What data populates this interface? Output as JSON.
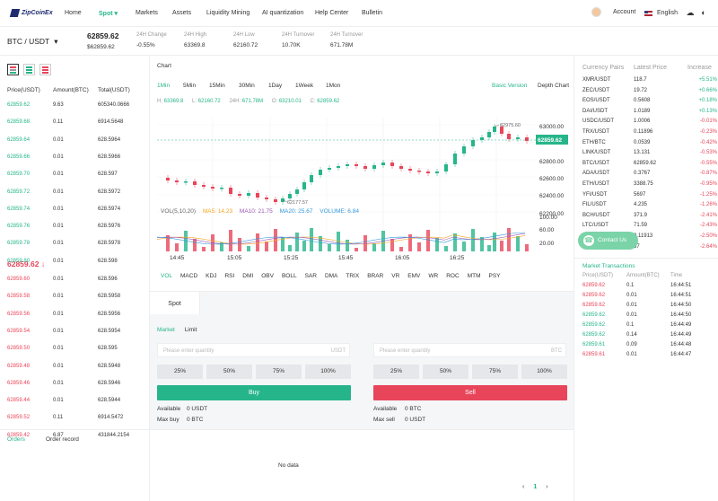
{
  "brand": {
    "name": "ZipCoinEx"
  },
  "nav": {
    "items": [
      "Home",
      "Spot",
      "Markets",
      "Assets",
      "Liquidity Mining",
      "AI quantization",
      "Help Center",
      "Bulletin"
    ],
    "active_index": 1,
    "account": "Account",
    "language": "English",
    "icons": [
      "download-cloud-icon",
      "theme-icon"
    ]
  },
  "ticker": {
    "pair": "BTC / USDT",
    "last_price": "62859.62",
    "last_usd": "$62859.62",
    "stats": [
      {
        "label": "24H Change",
        "value": "-0.55%",
        "color": "#e8455a"
      },
      {
        "label": "24H High",
        "value": "63369.8",
        "color": "#333333"
      },
      {
        "label": "24H Low",
        "value": "62160.72",
        "color": "#333333"
      },
      {
        "label": "24H Turnover",
        "value": "10.70K",
        "color": "#333333"
      },
      {
        "label": "24H Turnover",
        "value": "671.78M",
        "color": "#333333"
      }
    ]
  },
  "orderbook": {
    "headers": {
      "price": "Price(USDT)",
      "amount": "Amount(BTC)",
      "total": "Total(USDT)"
    },
    "asks": [
      {
        "price": "62859.62",
        "amount": "9.63",
        "total": "605340.0666"
      },
      {
        "price": "62859.68",
        "amount": "0.11",
        "total": "6914.5648"
      },
      {
        "price": "62859.64",
        "amount": "0.01",
        "total": "628.5964"
      },
      {
        "price": "62859.66",
        "amount": "0.01",
        "total": "628.5966"
      },
      {
        "price": "62859.70",
        "amount": "0.01",
        "total": "628.597"
      },
      {
        "price": "62859.72",
        "amount": "0.01",
        "total": "628.5972"
      },
      {
        "price": "62859.74",
        "amount": "0.01",
        "total": "628.5974"
      },
      {
        "price": "62859.76",
        "amount": "0.01",
        "total": "628.5976"
      },
      {
        "price": "62859.78",
        "amount": "0.01",
        "total": "628.5978"
      },
      {
        "price": "62859.80",
        "amount": "0.01",
        "total": "628.598"
      }
    ],
    "mid_price": "62859.62",
    "mid_arrow": "↓",
    "bids": [
      {
        "price": "62859.60",
        "amount": "0.01",
        "total": "628.596"
      },
      {
        "price": "62859.58",
        "amount": "0.01",
        "total": "628.5958"
      },
      {
        "price": "62859.56",
        "amount": "0.01",
        "total": "628.5956"
      },
      {
        "price": "62859.54",
        "amount": "0.01",
        "total": "628.5954"
      },
      {
        "price": "62859.50",
        "amount": "0.01",
        "total": "628.595"
      },
      {
        "price": "62859.48",
        "amount": "0.01",
        "total": "628.5948"
      },
      {
        "price": "62859.46",
        "amount": "0.01",
        "total": "628.5946"
      },
      {
        "price": "62859.44",
        "amount": "0.01",
        "total": "628.5944"
      },
      {
        "price": "62859.52",
        "amount": "0.11",
        "total": "6914.5472"
      },
      {
        "price": "62859.42",
        "amount": "6.87",
        "total": "431844.2154"
      }
    ]
  },
  "chart": {
    "title": "Chart",
    "intervals": [
      "1Min",
      "5Min",
      "15Min",
      "30Min",
      "1Day",
      "1Week",
      "1Mon"
    ],
    "active_interval": 0,
    "basic_version": "Basic Version",
    "depth_chart": "Depth Chart",
    "ohlc": [
      {
        "k": "H:",
        "v": "63369.8"
      },
      {
        "k": "L:",
        "v": "62160.72"
      },
      {
        "k": "24H:",
        "v": "671.78M"
      },
      {
        "k": "O:",
        "v": "63210.01"
      },
      {
        "k": "C:",
        "v": "62859.62"
      }
    ],
    "price_labels": [
      "63000.00",
      "62800.00",
      "62600.00",
      "62400.00",
      "62200.00"
    ],
    "current_price_tag": "62859.62",
    "high_marker": "62975.60",
    "low_marker": "62177.57",
    "vol_legend": {
      "vol": "VOL(5,10,20)",
      "ma5": "MA5: 14.23",
      "ma10": "MA10: 21.75",
      "ma20": "MA20: 25.67",
      "volume": "VOLUME: 6.84"
    },
    "vol_labels": [
      "100.00",
      "60.00",
      "20.00"
    ],
    "time_labels": [
      "14:45",
      "15:05",
      "15:25",
      "15:45",
      "16:05",
      "16:25"
    ],
    "indicators": [
      "VOL",
      "MACD",
      "KDJ",
      "RSI",
      "DMI",
      "OBV",
      "BOLL",
      "SAR",
      "DMA",
      "TRIX",
      "BRAR",
      "VR",
      "EMV",
      "WR",
      "ROC",
      "MTM",
      "PSY"
    ],
    "colors": {
      "up": "#26b58a",
      "down": "#e8455a",
      "ma5": "#f5a623",
      "ma10": "#9b59b6",
      "ma20": "#3498db"
    }
  },
  "trade": {
    "tab": "Spot",
    "modes": [
      "Market",
      "Limit"
    ],
    "placeholder": "Please enter quantity",
    "buy_unit": "USDT",
    "sell_unit": "BTC",
    "percents": [
      "25%",
      "50%",
      "75%",
      "100%"
    ],
    "buy_label": "Buy",
    "sell_label": "Sell",
    "buy_available": "Available",
    "buy_available_val": "0 USDT",
    "buy_max": "Max buy",
    "buy_max_val": "0 BTC",
    "sell_available": "Available",
    "sell_available_val": "0 BTC",
    "sell_max": "Max sell",
    "sell_max_val": "0 USDT"
  },
  "orders": {
    "tabs": [
      "Orders",
      "Order record"
    ],
    "empty": "No data",
    "page": "1",
    "prev": "‹",
    "next": "›"
  },
  "markets": {
    "headers": [
      "Currency Pairs",
      "Latest Price",
      "Increase"
    ],
    "rows": [
      {
        "pair": "XMR/USDT",
        "price": "118.7",
        "change": "+5.51%",
        "up": true
      },
      {
        "pair": "ZEC/USDT",
        "price": "19.72",
        "change": "+0.66%",
        "up": true
      },
      {
        "pair": "EOS/USDT",
        "price": "0.5608",
        "change": "+0.18%",
        "up": true
      },
      {
        "pair": "DAI/USDT",
        "price": "1.0189",
        "change": "+0.13%",
        "up": true
      },
      {
        "pair": "USDC/USDT",
        "price": "1.0006",
        "change": "-0.01%",
        "up": false
      },
      {
        "pair": "TRX/USDT",
        "price": "0.11896",
        "change": "-0.23%",
        "up": false
      },
      {
        "pair": "ETH/BTC",
        "price": "0.0539",
        "change": "-0.42%",
        "up": false
      },
      {
        "pair": "LINK/USDT",
        "price": "13.131",
        "change": "-0.53%",
        "up": false
      },
      {
        "pair": "BTC/USDT",
        "price": "62859.62",
        "change": "-0.55%",
        "up": false
      },
      {
        "pair": "ADA/USDT",
        "price": "0.3767",
        "change": "-0.87%",
        "up": false
      },
      {
        "pair": "ETH/USDT",
        "price": "3388.75",
        "change": "-0.95%",
        "up": false
      },
      {
        "pair": "YFI/USDT",
        "price": "5697",
        "change": "-1.25%",
        "up": false
      },
      {
        "pair": "FIL/USDT",
        "price": "4.235",
        "change": "-1.26%",
        "up": false
      },
      {
        "pair": "BCH/USDT",
        "price": "371.9",
        "change": "-2.41%",
        "up": false
      },
      {
        "pair": "LTC/USDT",
        "price": "71.59",
        "change": "-2.43%",
        "up": false
      },
      {
        "pair": "DOGE/USDT",
        "price": "0.11913",
        "change": "-2.50%",
        "up": false
      },
      {
        "pair": "",
        "price": "67",
        "change": "-2.64%",
        "up": false
      }
    ],
    "contact": "Contact Us",
    "trades_title": "Market Transactions",
    "trade_headers": [
      "Price(USDT)",
      "Amount(BTC)",
      "Time"
    ],
    "trades": [
      {
        "price": "62859.62",
        "amount": "0.1",
        "time": "16:44:51",
        "up": false
      },
      {
        "price": "62859.62",
        "amount": "0.01",
        "time": "16:44:51",
        "up": false
      },
      {
        "price": "62859.62",
        "amount": "0.01",
        "time": "16:44:50",
        "up": false
      },
      {
        "price": "62859.62",
        "amount": "0.01",
        "time": "16:44:50",
        "up": true
      },
      {
        "price": "62859.62",
        "amount": "0.1",
        "time": "16:44:49",
        "up": true
      },
      {
        "price": "62859.62",
        "amount": "0.14",
        "time": "16:44:49",
        "up": true
      },
      {
        "price": "62859.61",
        "amount": "0.09",
        "time": "16:44:48",
        "up": true
      },
      {
        "price": "62859.61",
        "amount": "0.01",
        "time": "16:44:47",
        "up": false
      }
    ]
  }
}
